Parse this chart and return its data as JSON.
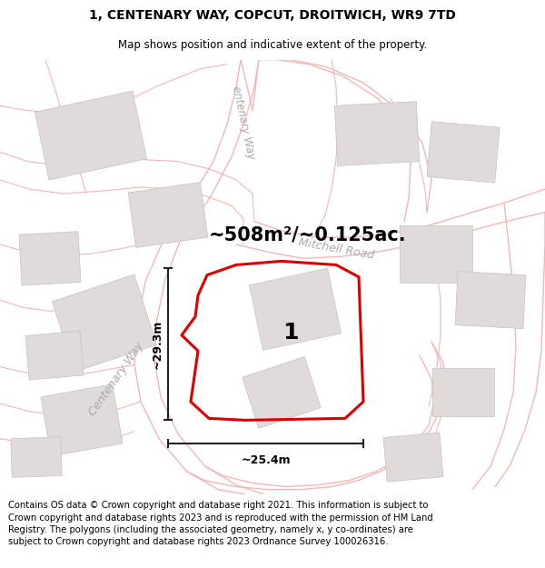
{
  "title_line1": "1, CENTENARY WAY, COPCUT, DROITWICH, WR9 7TD",
  "title_line2": "Map shows position and indicative extent of the property.",
  "area_label": "~508m²/~0.125ac.",
  "width_label": "~25.4m",
  "height_label": "~29.3m",
  "plot_number": "1",
  "road_label_centenary_top": "entenary Way",
  "road_label_centenary_mid": "Centenary Way",
  "road_label_mitchell": "Mitchell Road",
  "footer_text": "Contains OS data © Crown copyright and database right 2021. This information is subject to Crown copyright and database rights 2023 and is reproduced with the permission of HM Land Registry. The polygons (including the associated geometry, namely x, y co-ordinates) are subject to Crown copyright and database rights 2023 Ordnance Survey 100026316.",
  "map_bg": "#ffffff",
  "road_line_color": "#f0b8b8",
  "parcel_line_color": "#f0b8b8",
  "building_fill": "#e0dada",
  "building_edge": "#c8c0c0",
  "plot_color": "#dd0000",
  "dim_color": "#222222",
  "road_label_color": "#aaaaaa",
  "title_fs": 10,
  "sub_fs": 8.5,
  "footer_fs": 7.2,
  "area_fs": 15,
  "dim_fs": 9,
  "plot_num_fs": 18
}
